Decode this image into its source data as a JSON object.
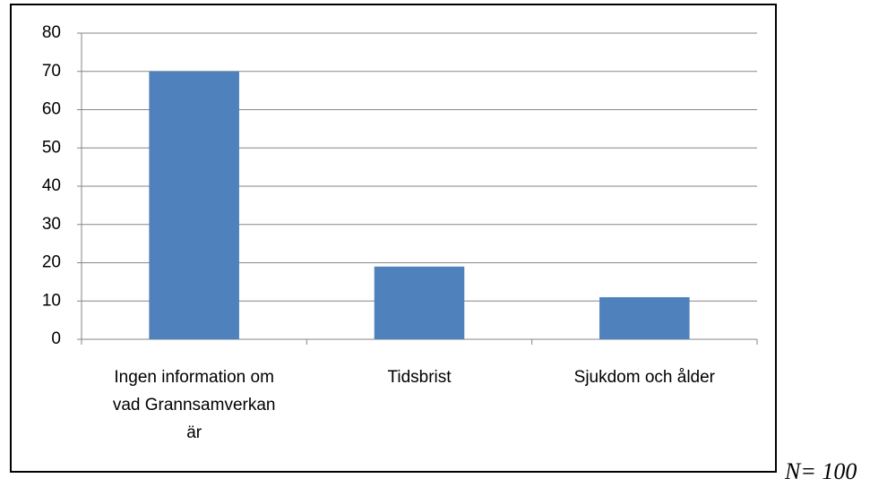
{
  "chart_data": {
    "type": "bar",
    "categories": [
      "Ingen information om vad Grannsamverkan är",
      "Tidsbrist",
      "Sjukdom och ålder"
    ],
    "values": [
      70,
      19,
      11
    ],
    "color": "#4f81bd",
    "ylim": [
      0,
      80
    ],
    "yticks": [
      0,
      10,
      20,
      30,
      40,
      50,
      60,
      70,
      80
    ],
    "grid": true,
    "annotation": "N= 100"
  }
}
